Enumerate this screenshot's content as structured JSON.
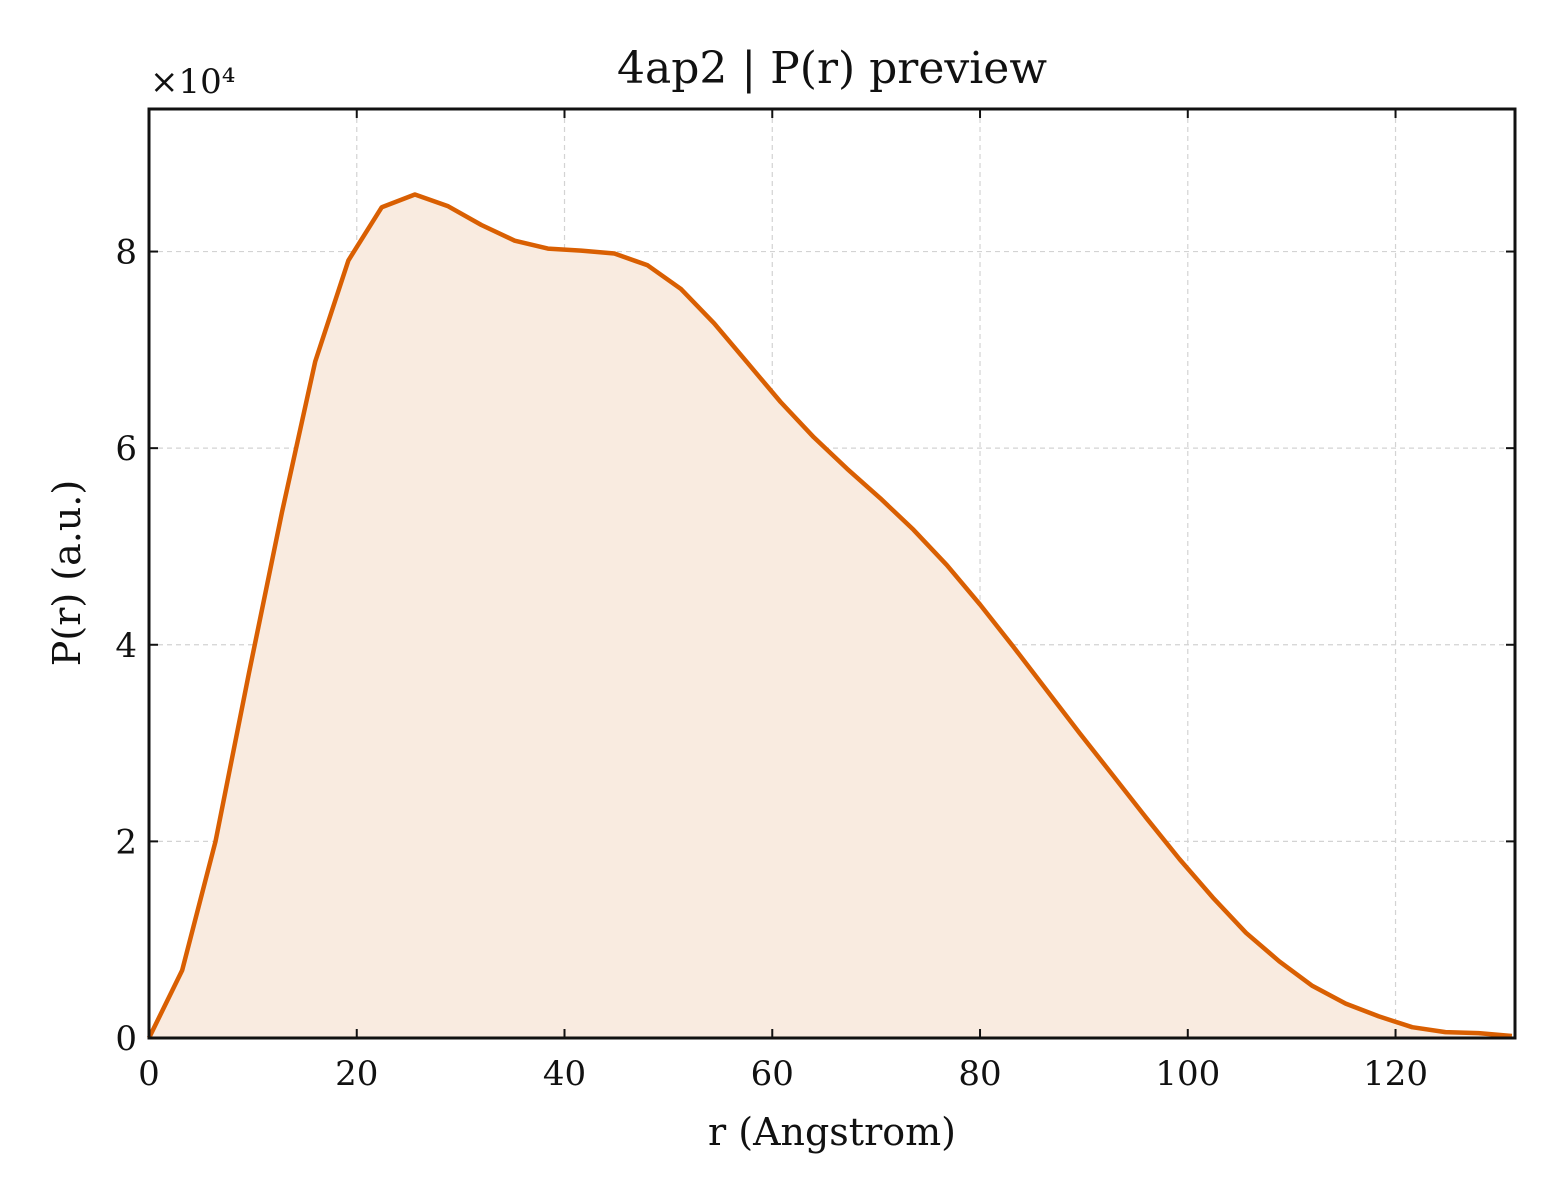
{
  "chart_data": {
    "type": "area",
    "title": "4ap2 | P(r) preview",
    "xlabel": "r (Angstrom)",
    "ylabel": "P(r) (a.u.)",
    "y_multiplier": "×10⁴",
    "y_scale": 10000,
    "xlim": [
      0,
      131.5
    ],
    "ylim": [
      0,
      94500
    ],
    "xticks": [
      0,
      20,
      40,
      60,
      80,
      100,
      120
    ],
    "xtick_labels": [
      "0",
      "20",
      "40",
      "60",
      "80",
      "100",
      "120"
    ],
    "yticks": [
      0,
      20000,
      40000,
      60000,
      80000
    ],
    "ytick_labels": [
      "0",
      "2",
      "4",
      "6",
      "8"
    ],
    "grid": true,
    "colors": {
      "line": "#d95f02",
      "fill": "#f9ebe0"
    },
    "series": [
      {
        "x": [
          0,
          3.2,
          6.4,
          9.6,
          12.8,
          16.0,
          19.2,
          22.4,
          25.6,
          28.8,
          32.0,
          35.2,
          38.4,
          41.6,
          44.8,
          48.0,
          51.2,
          54.4,
          57.6,
          60.8,
          64.0,
          67.2,
          70.4,
          73.6,
          76.8,
          80.0,
          83.2,
          86.4,
          89.6,
          92.8,
          96.0,
          99.2,
          102.4,
          105.6,
          108.8,
          112.0,
          115.2,
          118.4,
          121.6,
          124.8,
          128.0,
          131.2
        ],
        "y": [
          0,
          6900,
          20000,
          37000,
          53500,
          68800,
          79100,
          84500,
          85800,
          84600,
          82700,
          81100,
          80300,
          80100,
          79800,
          78600,
          76200,
          72700,
          68700,
          64700,
          61100,
          57900,
          54900,
          51700,
          48100,
          44100,
          39800,
          35400,
          31000,
          26700,
          22400,
          18200,
          14300,
          10700,
          7800,
          5300,
          3500,
          2200,
          1100,
          600,
          500,
          200
        ]
      }
    ]
  }
}
